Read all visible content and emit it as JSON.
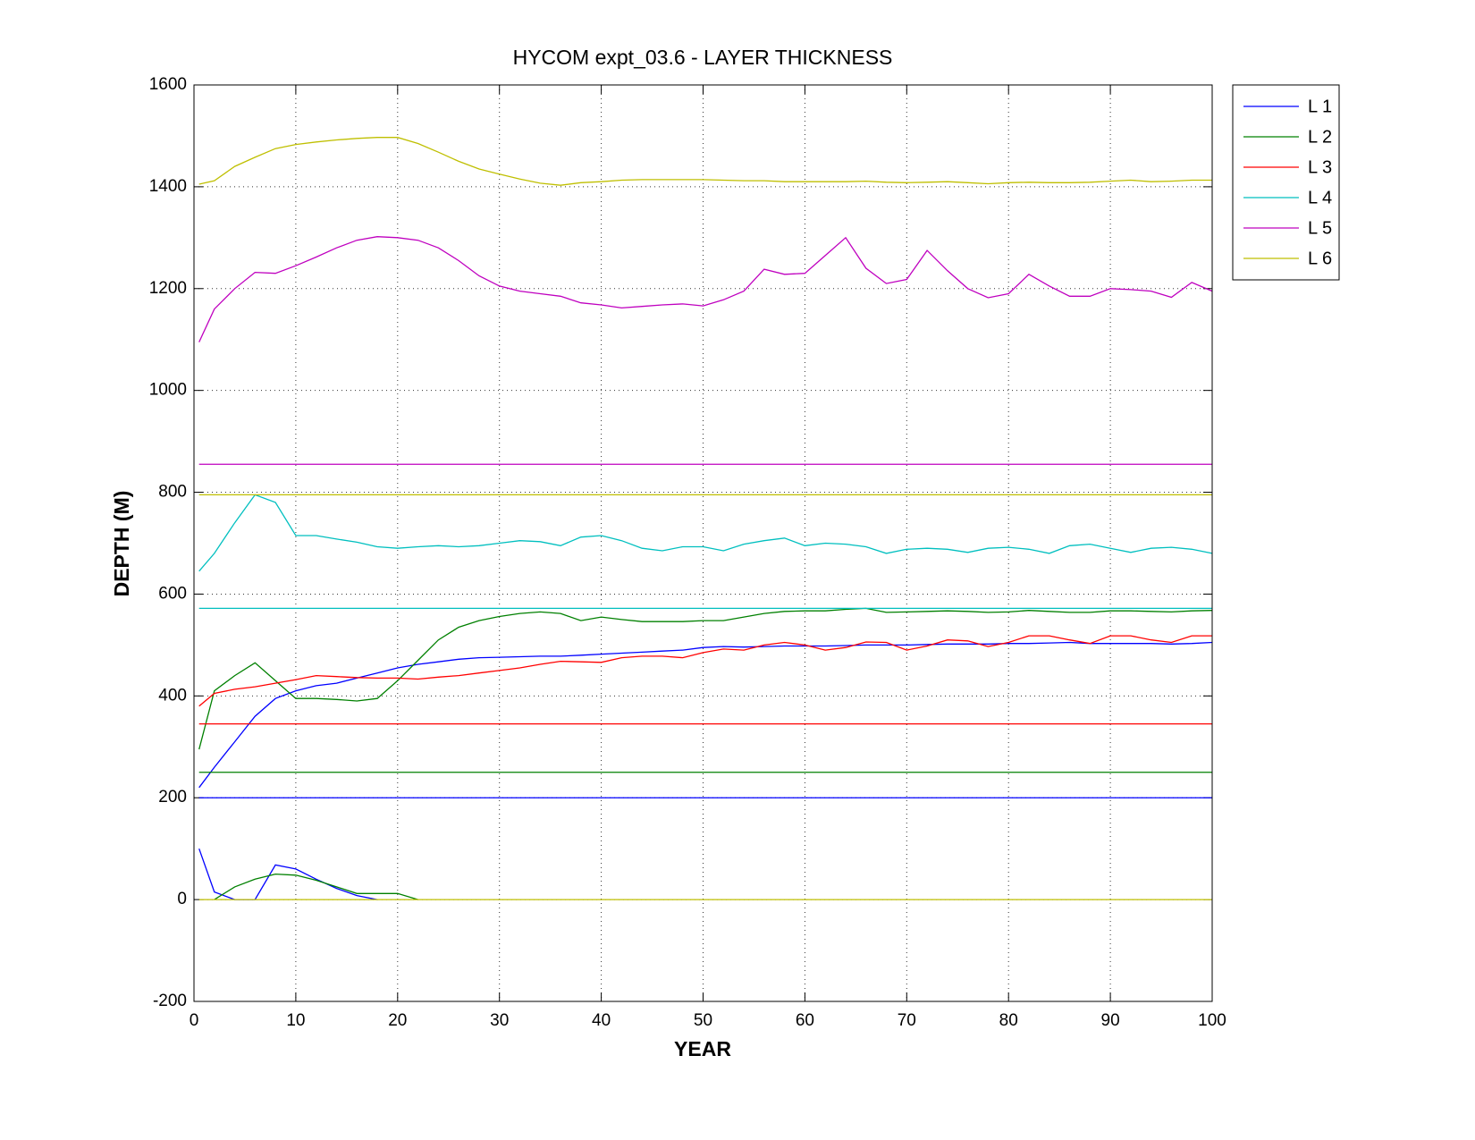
{
  "chart_data": {
    "type": "line",
    "title": "HYCOM expt_03.6 - LAYER THICKNESS",
    "x_label": "YEAR",
    "y_label": "DEPTH (M)",
    "xlim": [
      0,
      100
    ],
    "ylim": [
      -200,
      1600
    ],
    "xticks": [
      0,
      10,
      20,
      30,
      40,
      50,
      60,
      70,
      80,
      90,
      100
    ],
    "yticks": [
      -200,
      0,
      200,
      400,
      600,
      800,
      1000,
      1200,
      1400,
      1600
    ],
    "grid": true,
    "legend": "outside-upper-right",
    "x": [
      0.5,
      2,
      4,
      6,
      8,
      10,
      12,
      14,
      16,
      18,
      20,
      22,
      24,
      26,
      28,
      30,
      32,
      34,
      36,
      38,
      40,
      42,
      44,
      46,
      48,
      50,
      52,
      54,
      56,
      58,
      60,
      62,
      64,
      66,
      68,
      70,
      72,
      74,
      76,
      78,
      80,
      82,
      84,
      86,
      88,
      90,
      92,
      94,
      96,
      98,
      100
    ],
    "series": [
      {
        "name": "L 1",
        "color": "#0000ff",
        "reference": [
          200
        ],
        "values": [
          220,
          260,
          310,
          360,
          395,
          410,
          420,
          425,
          435,
          445,
          455,
          462,
          467,
          472,
          475,
          476,
          477,
          478,
          478,
          480,
          482,
          484,
          486,
          488,
          490,
          495,
          497,
          496,
          497,
          498,
          498,
          498,
          499,
          500,
          500,
          500,
          501,
          502,
          502,
          502,
          503,
          503,
          504,
          505,
          503,
          503,
          503,
          503,
          502,
          503,
          505
        ],
        "lower_values": [
          100,
          15,
          0,
          0,
          68,
          60,
          40,
          22,
          8,
          0,
          null,
          null,
          null,
          null,
          null,
          null,
          null,
          null,
          null,
          null,
          null,
          null,
          null,
          null,
          null,
          null,
          null,
          null,
          null,
          null,
          null,
          null,
          null,
          null,
          null,
          null,
          null,
          null,
          null,
          null,
          null,
          null,
          null,
          null,
          null,
          null,
          null,
          null,
          null,
          null,
          null
        ]
      },
      {
        "name": "L 2",
        "color": "#008000",
        "reference": [
          250
        ],
        "values": [
          295,
          410,
          440,
          465,
          430,
          395,
          395,
          393,
          390,
          395,
          430,
          470,
          510,
          535,
          548,
          556,
          562,
          565,
          562,
          548,
          555,
          550,
          546,
          546,
          546,
          548,
          548,
          555,
          562,
          566,
          567,
          567,
          570,
          572,
          564,
          565,
          566,
          567,
          566,
          564,
          565,
          568,
          566,
          564,
          564,
          567,
          567,
          566,
          565,
          567,
          568
        ],
        "lower_values": [
          null,
          0,
          25,
          40,
          50,
          48,
          38,
          25,
          12,
          12,
          12,
          0,
          null,
          null,
          null,
          null,
          null,
          null,
          null,
          null,
          null,
          null,
          null,
          null,
          null,
          null,
          null,
          null,
          null,
          null,
          null,
          null,
          null,
          null,
          null,
          null,
          null,
          null,
          null,
          null,
          null,
          null,
          null,
          null,
          null,
          null,
          null,
          null,
          null,
          null,
          null
        ]
      },
      {
        "name": "L 3",
        "color": "#ff0000",
        "reference": [
          345
        ],
        "values": [
          380,
          405,
          413,
          418,
          425,
          432,
          440,
          438,
          436,
          435,
          435,
          433,
          437,
          440,
          445,
          450,
          455,
          462,
          468,
          467,
          466,
          475,
          478,
          478,
          475,
          485,
          492,
          490,
          500,
          505,
          500,
          490,
          495,
          506,
          505,
          490,
          498,
          510,
          508,
          497,
          505,
          518,
          518,
          510,
          503,
          518,
          518,
          510,
          505,
          518,
          518
        ]
      },
      {
        "name": "L 4",
        "color": "#00bfbf",
        "reference": [
          572
        ],
        "values": [
          645,
          680,
          740,
          795,
          780,
          715,
          715,
          708,
          702,
          693,
          690,
          693,
          695,
          693,
          695,
          700,
          705,
          703,
          695,
          712,
          715,
          705,
          690,
          685,
          693,
          693,
          685,
          698,
          705,
          710,
          695,
          700,
          698,
          693,
          680,
          688,
          690,
          688,
          682,
          690,
          692,
          688,
          680,
          695,
          698,
          690,
          682,
          690,
          692,
          688,
          680
        ]
      },
      {
        "name": "L 5",
        "color": "#bf00bf",
        "reference": [
          855
        ],
        "values": [
          1095,
          1160,
          1200,
          1232,
          1230,
          1245,
          1262,
          1280,
          1295,
          1302,
          1300,
          1295,
          1280,
          1255,
          1225,
          1205,
          1195,
          1190,
          1185,
          1172,
          1168,
          1162,
          1165,
          1168,
          1170,
          1166,
          1178,
          1195,
          1238,
          1228,
          1230,
          1265,
          1300,
          1240,
          1210,
          1218,
          1275,
          1235,
          1200,
          1182,
          1190,
          1228,
          1205,
          1185,
          1185,
          1200,
          1198,
          1195,
          1183,
          1212,
          1195
        ]
      },
      {
        "name": "L 6",
        "color": "#bfbf00",
        "reference": [
          795,
          0
        ],
        "values": [
          1405,
          1412,
          1440,
          1458,
          1475,
          1483,
          1488,
          1492,
          1495,
          1497,
          1497,
          1485,
          1468,
          1450,
          1435,
          1425,
          1415,
          1407,
          1403,
          1408,
          1410,
          1413,
          1414,
          1414,
          1414,
          1414,
          1413,
          1412,
          1412,
          1410,
          1410,
          1410,
          1410,
          1411,
          1409,
          1408,
          1409,
          1410,
          1408,
          1406,
          1408,
          1409,
          1408,
          1408,
          1409,
          1411,
          1413,
          1410,
          1411,
          1413,
          1413
        ]
      }
    ]
  }
}
